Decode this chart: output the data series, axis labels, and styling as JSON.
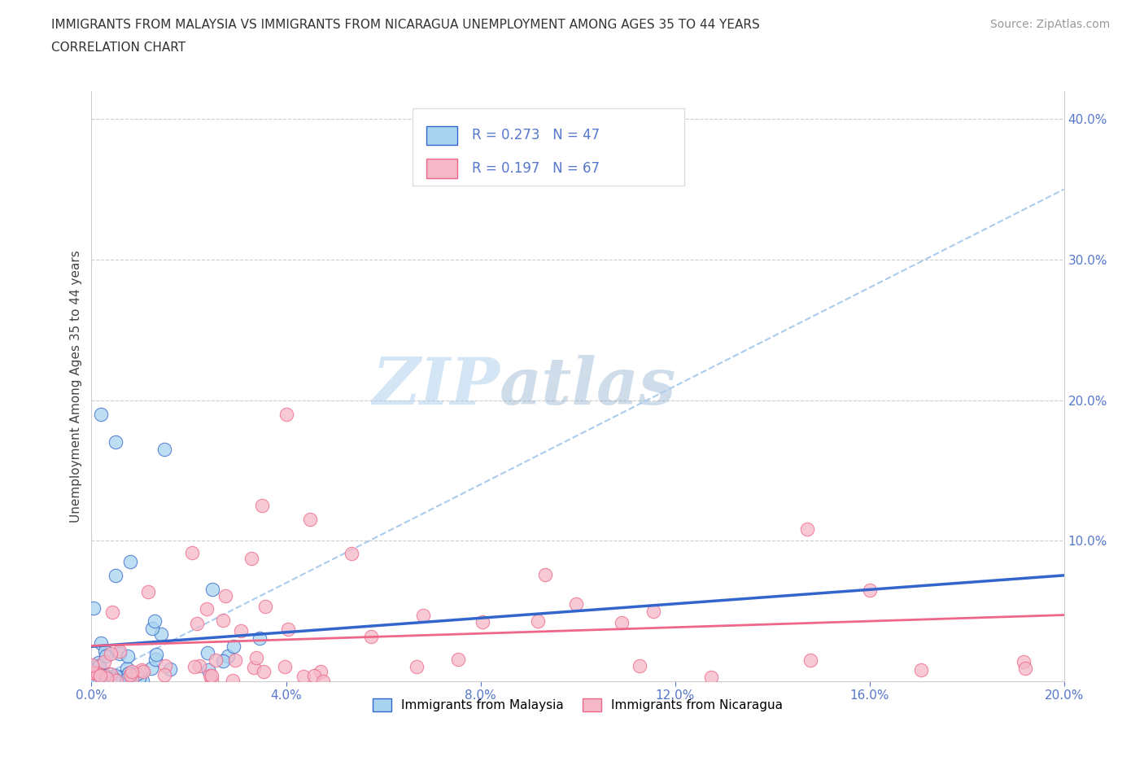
{
  "title_line1": "IMMIGRANTS FROM MALAYSIA VS IMMIGRANTS FROM NICARAGUA UNEMPLOYMENT AMONG AGES 35 TO 44 YEARS",
  "title_line2": "CORRELATION CHART",
  "source_text": "Source: ZipAtlas.com",
  "ylabel": "Unemployment Among Ages 35 to 44 years",
  "xlim": [
    0.0,
    0.2
  ],
  "ylim": [
    0.0,
    0.42
  ],
  "xticks": [
    0.0,
    0.04,
    0.08,
    0.12,
    0.16,
    0.2
  ],
  "yticks": [
    0.1,
    0.2,
    0.3,
    0.4
  ],
  "xtick_labels": [
    "0.0%",
    "4.0%",
    "8.0%",
    "12.0%",
    "16.0%",
    "20.0%"
  ],
  "ytick_labels": [
    "10.0%",
    "20.0%",
    "30.0%",
    "40.0%"
  ],
  "color_malaysia": "#A8D4F0",
  "color_nicaragua": "#F4B8C8",
  "color_line_malaysia": "#3366CC",
  "color_line_nicaragua": "#EE6688",
  "color_dash": "#AACCEE",
  "r_malaysia": 0.273,
  "n_malaysia": 47,
  "r_nicaragua": 0.197,
  "n_nicaragua": 67,
  "legend_labels": [
    "Immigrants from Malaysia",
    "Immigrants from Nicaragua"
  ],
  "watermark_zip": "ZIP",
  "watermark_atlas": "atlas",
  "tick_color": "#5577CC"
}
